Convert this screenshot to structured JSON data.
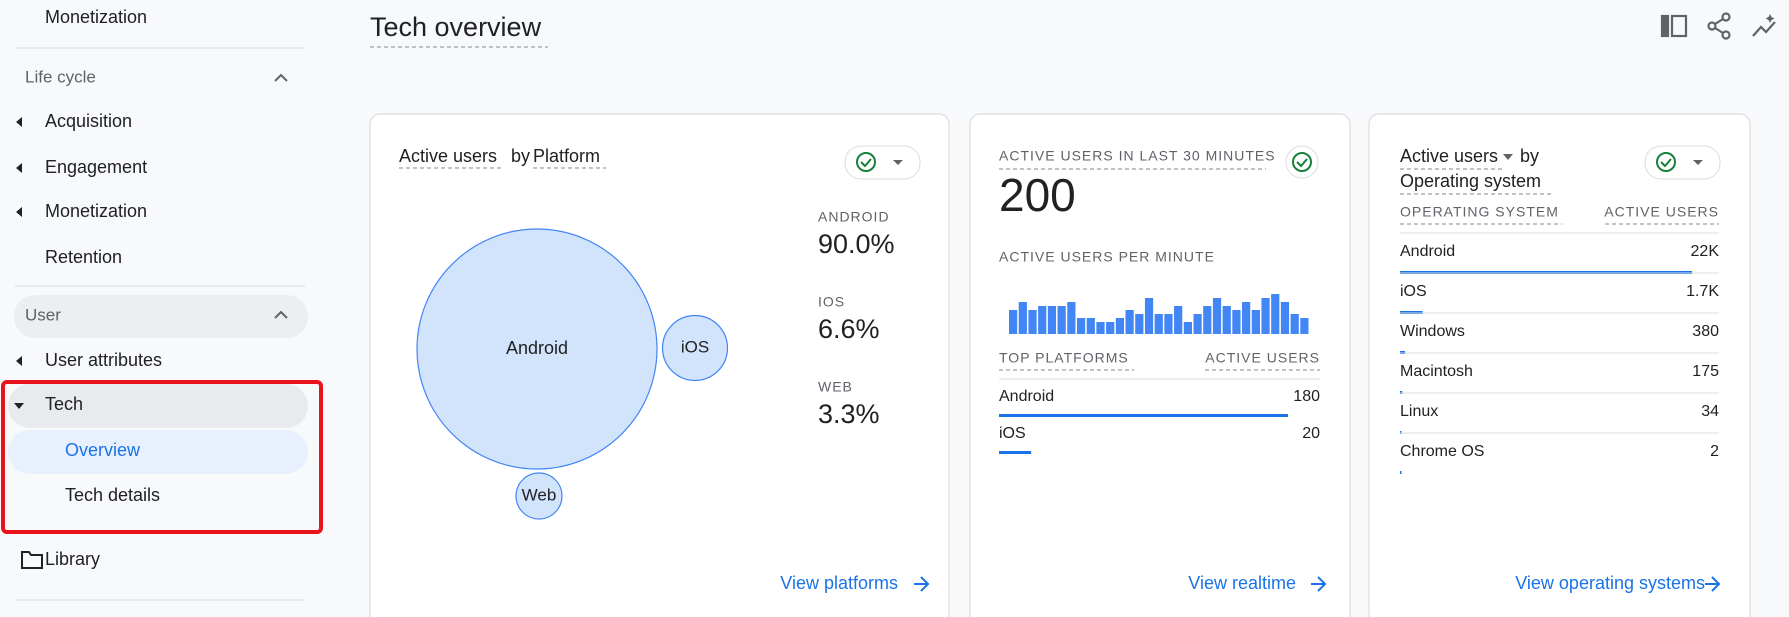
{
  "sidebar": {
    "top_item": "Monetization",
    "sections": [
      {
        "title": "Life cycle",
        "items": [
          "Acquisition",
          "Engagement",
          "Monetization",
          "Retention"
        ]
      },
      {
        "title": "User",
        "items": [
          "User attributes",
          "Tech"
        ],
        "subitems": [
          "Overview",
          "Tech details"
        ]
      }
    ],
    "library": "Library"
  },
  "header": {
    "title": "Tech overview"
  },
  "platform_card": {
    "title_parts": [
      "Active users",
      "by",
      "Platform"
    ],
    "chart": {
      "type": "bubble",
      "categories": [
        "Android",
        "iOS",
        "Web"
      ],
      "legend_labels": [
        "ANDROID",
        "IOS",
        "WEB"
      ],
      "values": [
        90.0,
        6.6,
        3.3
      ],
      "value_labels": [
        "90.0%",
        "6.6%",
        "3.3%"
      ],
      "color": "#d2e3fc"
    },
    "link": "View platforms"
  },
  "realtime_card": {
    "title": "ACTIVE USERS IN LAST 30 MINUTES",
    "total": 200,
    "subtitle": "ACTIVE USERS PER MINUTE",
    "chart": {
      "type": "bar",
      "color": "#4285f4",
      "values": [
        6,
        8,
        6,
        7,
        7,
        7,
        8,
        4,
        4,
        3,
        3,
        4,
        6,
        5,
        9,
        5,
        5,
        7,
        3,
        5,
        7,
        9,
        7,
        6,
        8,
        6,
        9,
        10,
        8,
        5,
        4
      ]
    },
    "table": {
      "headers": [
        "TOP PLATFORMS",
        "ACTIVE USERS"
      ],
      "rows": [
        {
          "label": "Android",
          "value": 180
        },
        {
          "label": "iOS",
          "value": 20
        }
      ]
    },
    "link": "View realtime"
  },
  "os_card": {
    "title_parts": [
      "Active users",
      "by",
      "Operating system"
    ],
    "table": {
      "headers": [
        "OPERATING SYSTEM",
        "ACTIVE USERS"
      ],
      "rows": [
        {
          "label": "Android",
          "value": 22000,
          "value_label": "22K"
        },
        {
          "label": "iOS",
          "value": 1700,
          "value_label": "1.7K"
        },
        {
          "label": "Windows",
          "value": 380
        },
        {
          "label": "Macintosh",
          "value": 175
        },
        {
          "label": "Linux",
          "value": 34
        },
        {
          "label": "Chrome OS",
          "value": 2
        }
      ]
    },
    "link": "View operating systems"
  }
}
